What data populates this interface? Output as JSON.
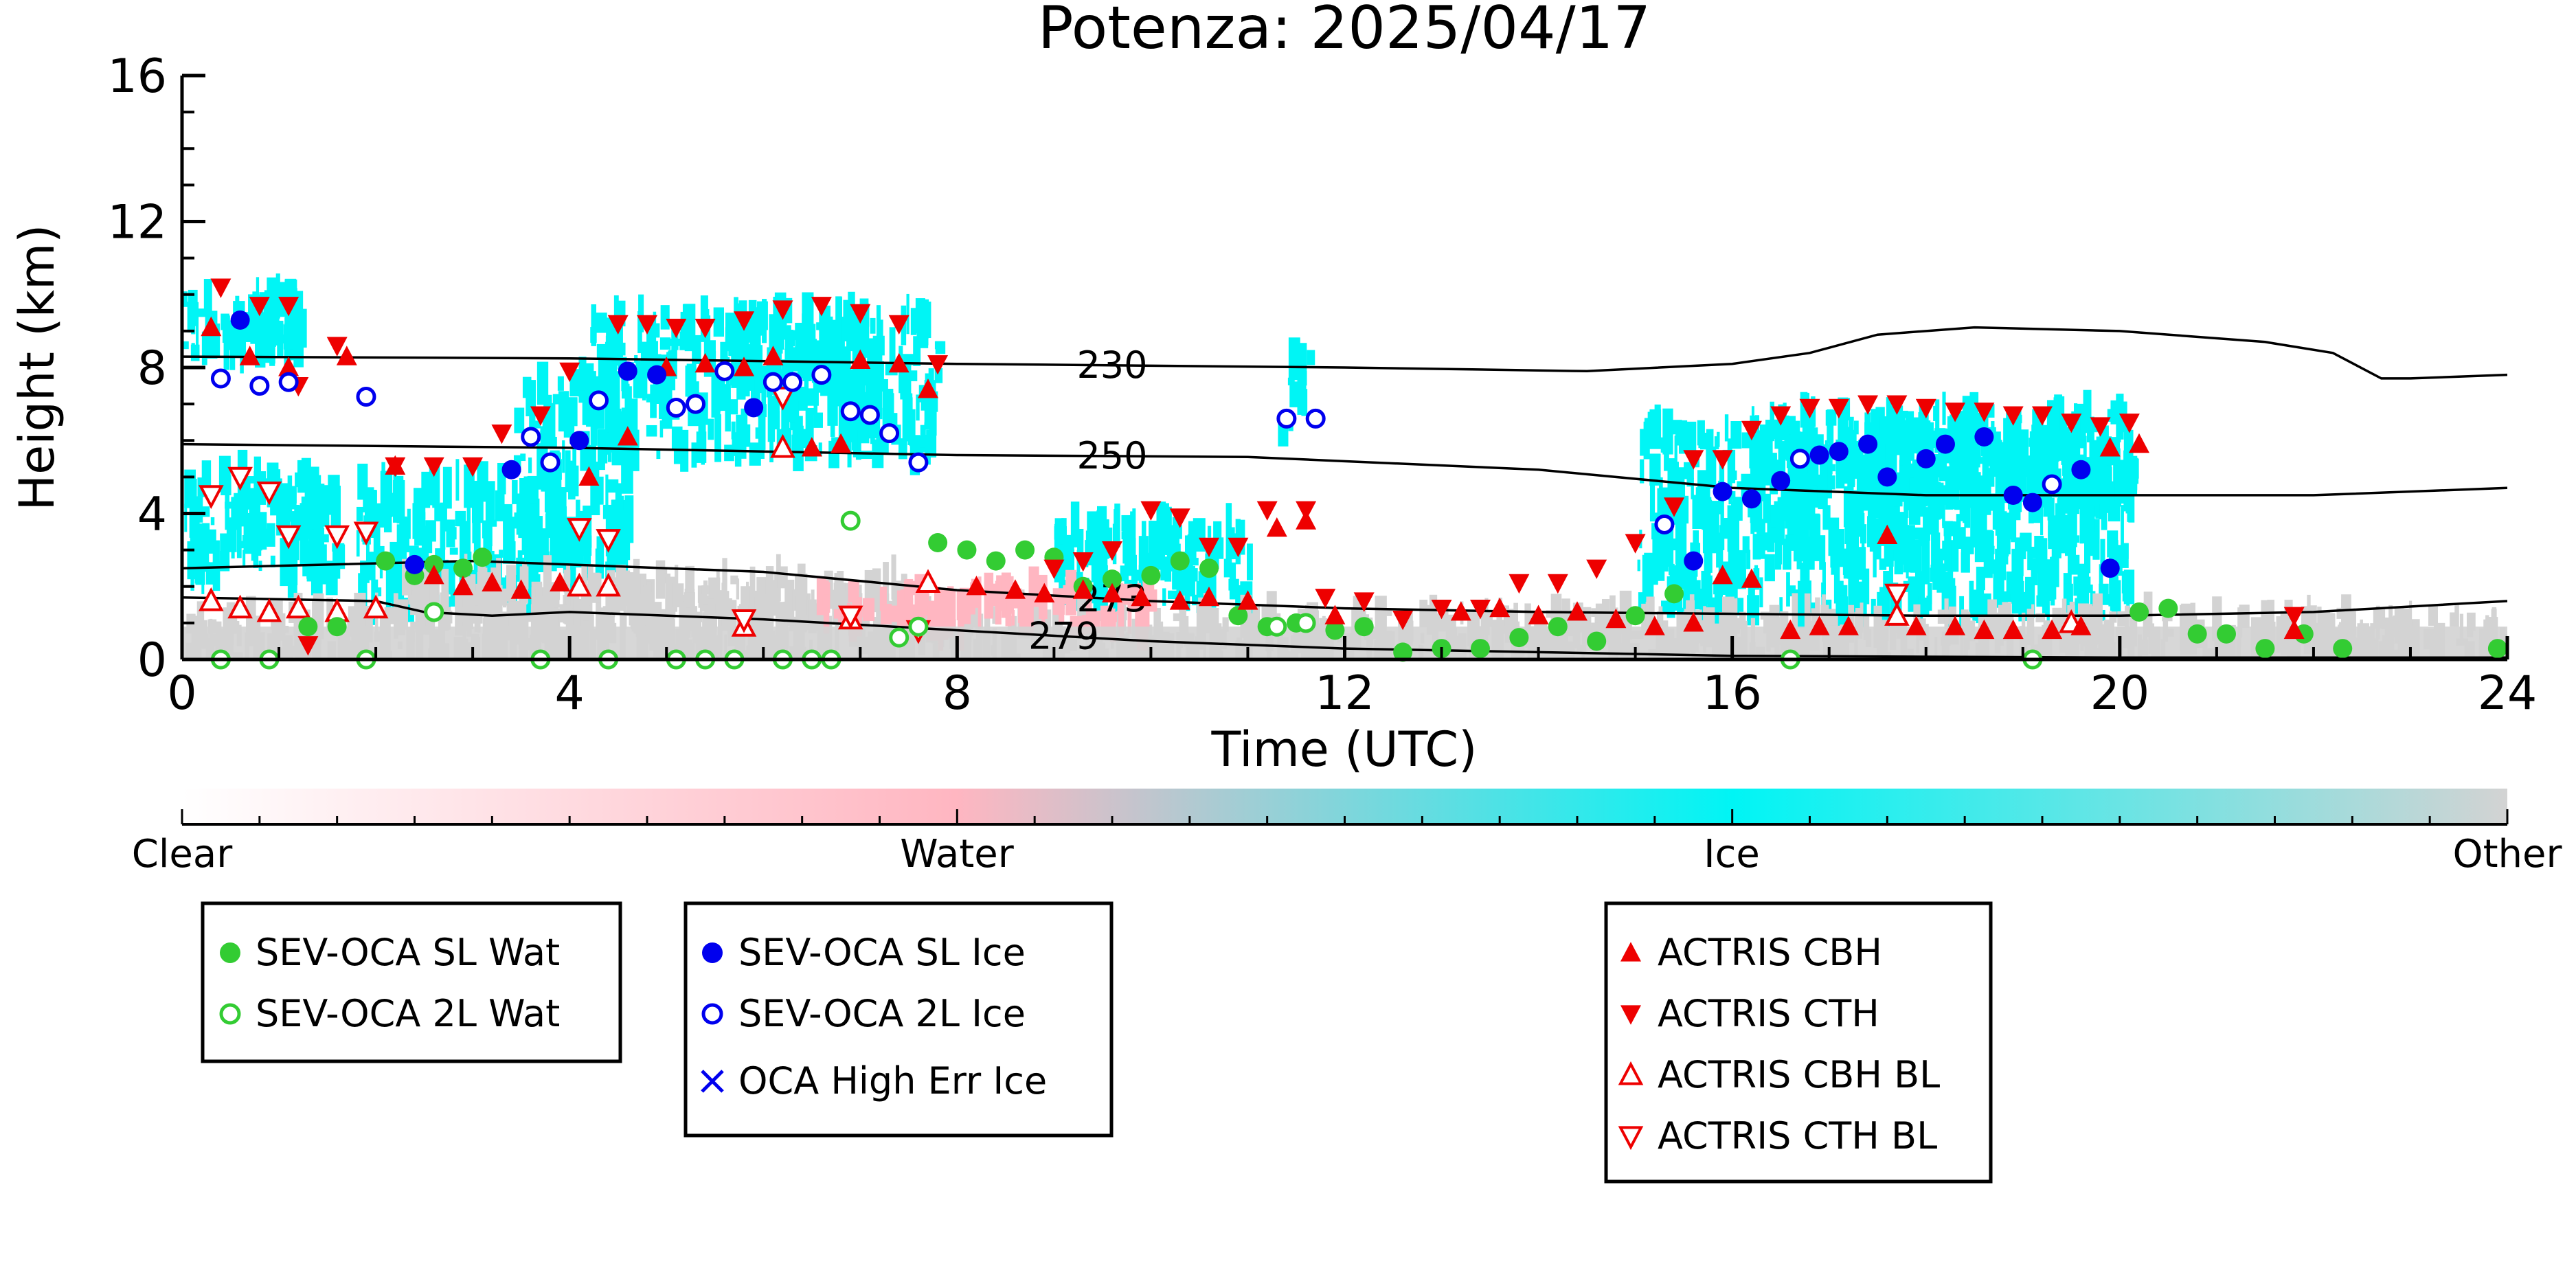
{
  "chart_data": {
    "type": "scatter",
    "title": "Potenza: 2025/04/17",
    "xlabel": "Time (UTC)",
    "ylabel": "Height (km)",
    "xlim": [
      0,
      24
    ],
    "ylim": [
      0,
      16
    ],
    "x_ticks": [
      "0",
      "4",
      "8",
      "12",
      "16",
      "20",
      "24"
    ],
    "y_ticks": [
      "0",
      "4",
      "8",
      "12",
      "16"
    ],
    "colorbar": {
      "labels": [
        "Clear",
        "Water",
        "Ice",
        "Other"
      ],
      "colors": [
        "#ffffff",
        "#ffb6c1",
        "#00f5f5",
        "#d3d3d3"
      ]
    },
    "isotherms": [
      {
        "label": "230",
        "label_at": 9.6,
        "points": [
          [
            0,
            8.3
          ],
          [
            4,
            8.25
          ],
          [
            8,
            8.1
          ],
          [
            12,
            8.0
          ],
          [
            14.5,
            7.9
          ],
          [
            16,
            8.1
          ],
          [
            16.8,
            8.4
          ],
          [
            17.5,
            8.9
          ],
          [
            18.5,
            9.1
          ],
          [
            20,
            9.0
          ],
          [
            21.5,
            8.7
          ],
          [
            22.2,
            8.4
          ],
          [
            22.7,
            7.7
          ],
          [
            23,
            7.7
          ],
          [
            24,
            7.8
          ]
        ]
      },
      {
        "label": "250",
        "label_at": 9.6,
        "points": [
          [
            0,
            5.9
          ],
          [
            4,
            5.8
          ],
          [
            8,
            5.6
          ],
          [
            11,
            5.55
          ],
          [
            14,
            5.2
          ],
          [
            16,
            4.7
          ],
          [
            18,
            4.5
          ],
          [
            20,
            4.5
          ],
          [
            22,
            4.5
          ],
          [
            24,
            4.7
          ]
        ]
      },
      {
        "label": "273",
        "label_at": 9.6,
        "points": [
          [
            0,
            2.5
          ],
          [
            3,
            2.7
          ],
          [
            6,
            2.4
          ],
          [
            8,
            1.9
          ],
          [
            10,
            1.6
          ],
          [
            12,
            1.4
          ],
          [
            14,
            1.3
          ],
          [
            18,
            1.2
          ],
          [
            20,
            1.2
          ],
          [
            22,
            1.3
          ],
          [
            24,
            1.6
          ]
        ]
      },
      {
        "label": "279",
        "label_at": 9.1,
        "points": [
          [
            0,
            1.7
          ],
          [
            2,
            1.6
          ],
          [
            2.5,
            1.3
          ],
          [
            3.2,
            1.2
          ],
          [
            4,
            1.3
          ],
          [
            6,
            1.1
          ],
          [
            8,
            0.8
          ],
          [
            10,
            0.5
          ],
          [
            12,
            0.3
          ],
          [
            16,
            0.1
          ],
          [
            20,
            0.05
          ],
          [
            24,
            0.05
          ]
        ]
      }
    ],
    "series": [
      {
        "name": "SEV-OCA SL Wat",
        "marker": "circle-filled",
        "color": "#33cc33",
        "points": [
          [
            2.1,
            2.7
          ],
          [
            2.4,
            2.3
          ],
          [
            2.6,
            2.6
          ],
          [
            2.9,
            2.5
          ],
          [
            3.1,
            2.8
          ],
          [
            1.3,
            0.9
          ],
          [
            1.6,
            0.9
          ],
          [
            7.8,
            3.2
          ],
          [
            8.1,
            3.0
          ],
          [
            8.4,
            2.7
          ],
          [
            8.7,
            3.0
          ],
          [
            9.0,
            2.8
          ],
          [
            9.3,
            2.0
          ],
          [
            9.6,
            2.2
          ],
          [
            10.0,
            2.3
          ],
          [
            10.3,
            2.7
          ],
          [
            10.6,
            2.5
          ],
          [
            10.9,
            1.2
          ],
          [
            11.2,
            0.9
          ],
          [
            11.5,
            1.0
          ],
          [
            11.9,
            0.8
          ],
          [
            12.2,
            0.9
          ],
          [
            12.6,
            0.2
          ],
          [
            13.0,
            0.3
          ],
          [
            13.4,
            0.3
          ],
          [
            13.8,
            0.6
          ],
          [
            14.2,
            0.9
          ],
          [
            14.6,
            0.5
          ],
          [
            15.0,
            1.2
          ],
          [
            15.4,
            1.8
          ],
          [
            20.2,
            1.3
          ],
          [
            20.5,
            1.4
          ],
          [
            20.8,
            0.7
          ],
          [
            21.1,
            0.7
          ],
          [
            21.5,
            0.3
          ],
          [
            21.9,
            0.7
          ],
          [
            22.3,
            0.3
          ],
          [
            23.9,
            0.3
          ]
        ]
      },
      {
        "name": "SEV-OCA 2L Wat",
        "marker": "circle-open",
        "color": "#33cc33",
        "points": [
          [
            2.6,
            1.3
          ],
          [
            6.9,
            3.8
          ],
          [
            7.4,
            0.6
          ],
          [
            7.6,
            0.9
          ],
          [
            11.3,
            0.9
          ],
          [
            11.6,
            1.0
          ],
          [
            0.4,
            0.0
          ],
          [
            0.9,
            0.0
          ],
          [
            1.9,
            0.0
          ],
          [
            3.7,
            0.0
          ],
          [
            4.4,
            0.0
          ],
          [
            5.1,
            0.0
          ],
          [
            5.4,
            0.0
          ],
          [
            5.7,
            0.0
          ],
          [
            6.2,
            0.0
          ],
          [
            6.5,
            0.0
          ],
          [
            6.7,
            0.0
          ],
          [
            16.6,
            0.0
          ],
          [
            19.1,
            0.0
          ]
        ]
      },
      {
        "name": "SEV-OCA SL Ice",
        "marker": "circle-filled",
        "color": "#0000ee",
        "points": [
          [
            0.6,
            9.3
          ],
          [
            2.4,
            2.6
          ],
          [
            3.4,
            5.2
          ],
          [
            4.1,
            6.0
          ],
          [
            4.6,
            7.9
          ],
          [
            4.9,
            7.8
          ],
          [
            5.9,
            6.9
          ],
          [
            15.6,
            2.7
          ],
          [
            15.9,
            4.6
          ],
          [
            16.2,
            4.4
          ],
          [
            16.5,
            4.9
          ],
          [
            16.9,
            5.6
          ],
          [
            17.1,
            5.7
          ],
          [
            17.4,
            5.9
          ],
          [
            17.6,
            5.0
          ],
          [
            18.0,
            5.5
          ],
          [
            18.2,
            5.9
          ],
          [
            18.6,
            6.1
          ],
          [
            18.9,
            4.5
          ],
          [
            19.1,
            4.3
          ],
          [
            19.6,
            5.2
          ],
          [
            19.9,
            2.5
          ]
        ]
      },
      {
        "name": "SEV-OCA 2L Ice",
        "marker": "circle-open",
        "color": "#0000ee",
        "points": [
          [
            0.4,
            7.7
          ],
          [
            0.8,
            7.5
          ],
          [
            1.1,
            7.6
          ],
          [
            1.9,
            7.2
          ],
          [
            3.6,
            6.1
          ],
          [
            3.8,
            5.4
          ],
          [
            4.3,
            7.1
          ],
          [
            5.1,
            6.9
          ],
          [
            5.3,
            7.0
          ],
          [
            5.6,
            7.9
          ],
          [
            6.1,
            7.6
          ],
          [
            6.3,
            7.6
          ],
          [
            6.6,
            7.8
          ],
          [
            6.9,
            6.8
          ],
          [
            7.1,
            6.7
          ],
          [
            7.3,
            6.2
          ],
          [
            7.6,
            5.4
          ],
          [
            11.4,
            6.6
          ],
          [
            11.7,
            6.6
          ],
          [
            15.3,
            3.7
          ],
          [
            16.7,
            5.5
          ],
          [
            19.3,
            4.8
          ]
        ]
      },
      {
        "name": "OCA High Err Ice",
        "marker": "x",
        "color": "#0000ee",
        "points": []
      },
      {
        "name": "ACTRIS CBH",
        "marker": "triangle-up-filled",
        "color": "#ee0000",
        "points": [
          [
            0.3,
            9.1
          ],
          [
            0.7,
            8.3
          ],
          [
            1.1,
            8.0
          ],
          [
            1.7,
            8.3
          ],
          [
            2.2,
            5.3
          ],
          [
            2.6,
            2.3
          ],
          [
            2.9,
            2.0
          ],
          [
            3.2,
            2.1
          ],
          [
            3.5,
            1.9
          ],
          [
            3.9,
            2.1
          ],
          [
            4.2,
            5.0
          ],
          [
            4.6,
            6.1
          ],
          [
            5.0,
            8.0
          ],
          [
            5.4,
            8.1
          ],
          [
            5.8,
            8.0
          ],
          [
            6.1,
            8.3
          ],
          [
            6.5,
            5.8
          ],
          [
            6.8,
            5.9
          ],
          [
            7.0,
            8.2
          ],
          [
            7.4,
            8.1
          ],
          [
            7.7,
            7.4
          ],
          [
            8.2,
            2.0
          ],
          [
            8.6,
            1.9
          ],
          [
            8.9,
            1.8
          ],
          [
            9.3,
            1.9
          ],
          [
            9.6,
            1.8
          ],
          [
            9.9,
            1.7
          ],
          [
            10.3,
            1.6
          ],
          [
            10.6,
            1.7
          ],
          [
            11.0,
            1.6
          ],
          [
            11.3,
            3.6
          ],
          [
            11.6,
            3.8
          ],
          [
            11.9,
            1.2
          ],
          [
            13.2,
            1.3
          ],
          [
            13.6,
            1.4
          ],
          [
            14.0,
            1.2
          ],
          [
            14.4,
            1.3
          ],
          [
            14.8,
            1.1
          ],
          [
            15.2,
            0.9
          ],
          [
            15.6,
            1.0
          ],
          [
            15.9,
            2.3
          ],
          [
            16.2,
            2.2
          ],
          [
            16.6,
            0.8
          ],
          [
            16.9,
            0.9
          ],
          [
            17.2,
            0.9
          ],
          [
            17.6,
            3.4
          ],
          [
            17.9,
            0.9
          ],
          [
            18.3,
            0.9
          ],
          [
            18.6,
            0.8
          ],
          [
            18.9,
            0.8
          ],
          [
            19.3,
            0.8
          ],
          [
            19.6,
            0.9
          ],
          [
            19.9,
            5.8
          ],
          [
            20.2,
            5.9
          ],
          [
            21.8,
            0.8
          ]
        ]
      },
      {
        "name": "ACTRIS CTH",
        "marker": "triangle-down-filled",
        "color": "#ee0000",
        "points": [
          [
            0.4,
            10.2
          ],
          [
            0.8,
            9.7
          ],
          [
            1.1,
            9.7
          ],
          [
            1.2,
            7.5
          ],
          [
            1.6,
            8.6
          ],
          [
            2.2,
            5.3
          ],
          [
            2.6,
            5.3
          ],
          [
            3.0,
            5.3
          ],
          [
            3.3,
            6.2
          ],
          [
            3.7,
            6.7
          ],
          [
            4.0,
            7.9
          ],
          [
            4.5,
            9.2
          ],
          [
            4.8,
            9.2
          ],
          [
            5.1,
            9.1
          ],
          [
            5.4,
            9.1
          ],
          [
            5.8,
            9.3
          ],
          [
            6.2,
            9.6
          ],
          [
            6.6,
            9.7
          ],
          [
            7.0,
            9.5
          ],
          [
            7.4,
            9.2
          ],
          [
            7.8,
            8.1
          ],
          [
            9.0,
            2.5
          ],
          [
            9.3,
            2.7
          ],
          [
            9.6,
            3.0
          ],
          [
            10.0,
            4.1
          ],
          [
            10.3,
            3.9
          ],
          [
            10.6,
            3.1
          ],
          [
            10.9,
            3.1
          ],
          [
            11.2,
            4.1
          ],
          [
            11.6,
            4.1
          ],
          [
            11.8,
            1.7
          ],
          [
            12.2,
            1.6
          ],
          [
            12.6,
            1.1
          ],
          [
            13.0,
            1.4
          ],
          [
            13.4,
            1.4
          ],
          [
            13.8,
            2.1
          ],
          [
            14.2,
            2.1
          ],
          [
            14.6,
            2.5
          ],
          [
            15.0,
            3.2
          ],
          [
            15.4,
            4.2
          ],
          [
            15.6,
            5.5
          ],
          [
            15.9,
            5.5
          ],
          [
            16.2,
            6.3
          ],
          [
            16.5,
            6.7
          ],
          [
            16.8,
            6.9
          ],
          [
            17.1,
            6.9
          ],
          [
            17.4,
            7.0
          ],
          [
            17.7,
            7.0
          ],
          [
            18.0,
            6.9
          ],
          [
            18.3,
            6.8
          ],
          [
            18.6,
            6.8
          ],
          [
            18.9,
            6.7
          ],
          [
            19.2,
            6.7
          ],
          [
            19.5,
            6.5
          ],
          [
            19.8,
            6.4
          ],
          [
            20.1,
            6.5
          ],
          [
            21.8,
            1.2
          ],
          [
            1.3,
            0.4
          ]
        ]
      },
      {
        "name": "ACTRIS CBH BL",
        "marker": "triangle-up-open",
        "color": "#ee0000",
        "points": [
          [
            0.3,
            1.6
          ],
          [
            0.6,
            1.4
          ],
          [
            0.9,
            1.3
          ],
          [
            1.2,
            1.4
          ],
          [
            1.6,
            1.3
          ],
          [
            2.0,
            1.4
          ],
          [
            4.1,
            2.0
          ],
          [
            4.4,
            2.0
          ],
          [
            5.8,
            0.9
          ],
          [
            6.2,
            5.8
          ],
          [
            6.9,
            1.1
          ],
          [
            7.7,
            2.1
          ],
          [
            17.7,
            1.2
          ],
          [
            19.5,
            1.0
          ]
        ]
      },
      {
        "name": "ACTRIS CTH BL",
        "marker": "triangle-down-open",
        "color": "#ee0000",
        "points": [
          [
            0.3,
            4.5
          ],
          [
            0.6,
            5.0
          ],
          [
            0.9,
            4.6
          ],
          [
            1.1,
            3.4
          ],
          [
            1.6,
            3.4
          ],
          [
            1.9,
            3.5
          ],
          [
            4.1,
            3.6
          ],
          [
            4.4,
            3.3
          ],
          [
            6.2,
            7.2
          ],
          [
            17.7,
            1.8
          ],
          [
            5.8,
            1.1
          ],
          [
            6.9,
            1.2
          ],
          [
            7.6,
            0.8
          ]
        ]
      }
    ]
  }
}
